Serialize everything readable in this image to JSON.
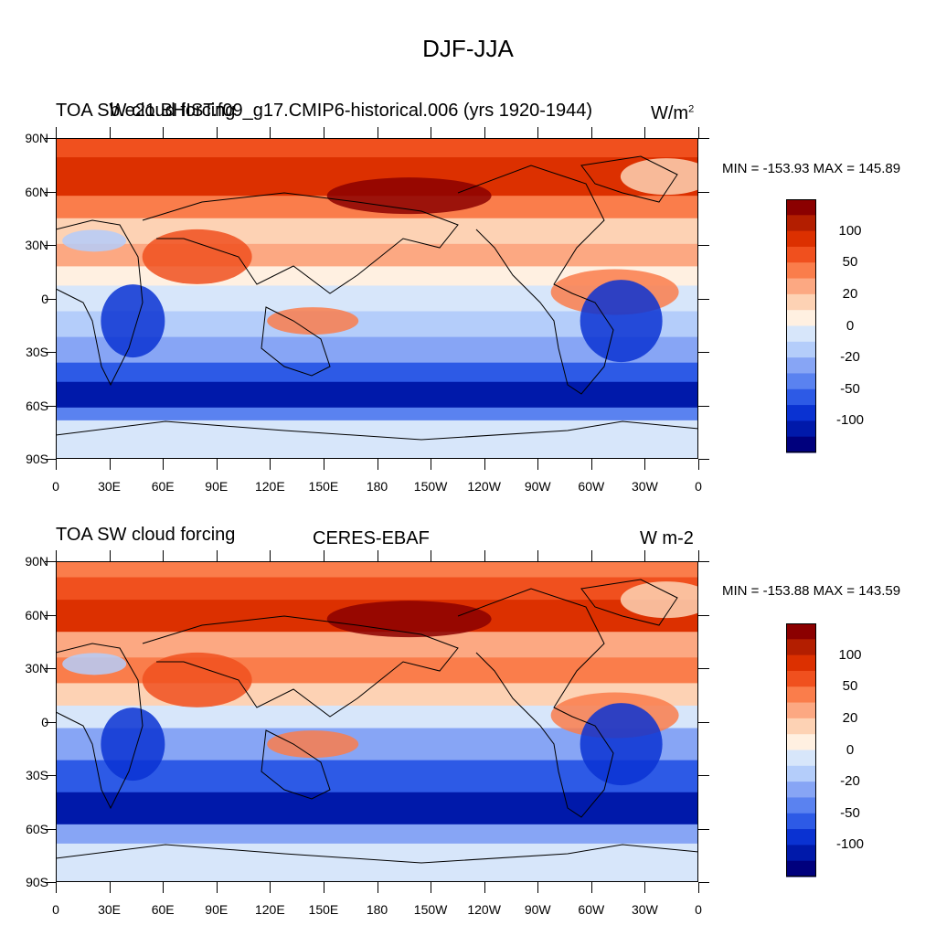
{
  "main_title": "DJF-JJA",
  "panels": [
    {
      "left_title": "TOA SW cloud forcing",
      "center_title": "b.e21.BHIST.f09_g17.CMIP6-historical.006 (yrs 1920-1944)",
      "right_title": "W/m",
      "right_title_sup": "2",
      "stats": "MIN = -153.93 MAX = 145.89"
    },
    {
      "left_title": "TOA SW cloud forcing",
      "center_title": "CERES-EBAF",
      "right_title": "W m-2",
      "right_title_sup": "",
      "stats": "MIN = -153.88 MAX = 143.59"
    }
  ],
  "lat_ticks": [
    "90N",
    "60N",
    "30N",
    "0",
    "30S",
    "60S",
    "90S"
  ],
  "lon_ticks": [
    "0",
    "30E",
    "60E",
    "90E",
    "120E",
    "150E",
    "180",
    "150W",
    "120W",
    "90W",
    "60W",
    "30W",
    "0"
  ],
  "colorbar": {
    "labels": [
      "100",
      "50",
      "20",
      "0",
      "-20",
      "-50",
      "-100"
    ],
    "colors": [
      "#8b0000",
      "#b31e00",
      "#dc3000",
      "#f0501e",
      "#fa7d4b",
      "#fca882",
      "#fdd2b4",
      "#fff0e1",
      "#d7e6fa",
      "#b4cdfa",
      "#87a5f5",
      "#5a82f0",
      "#2d5ae6",
      "#0a32d2",
      "#0019aa",
      "#00007d"
    ]
  }
}
